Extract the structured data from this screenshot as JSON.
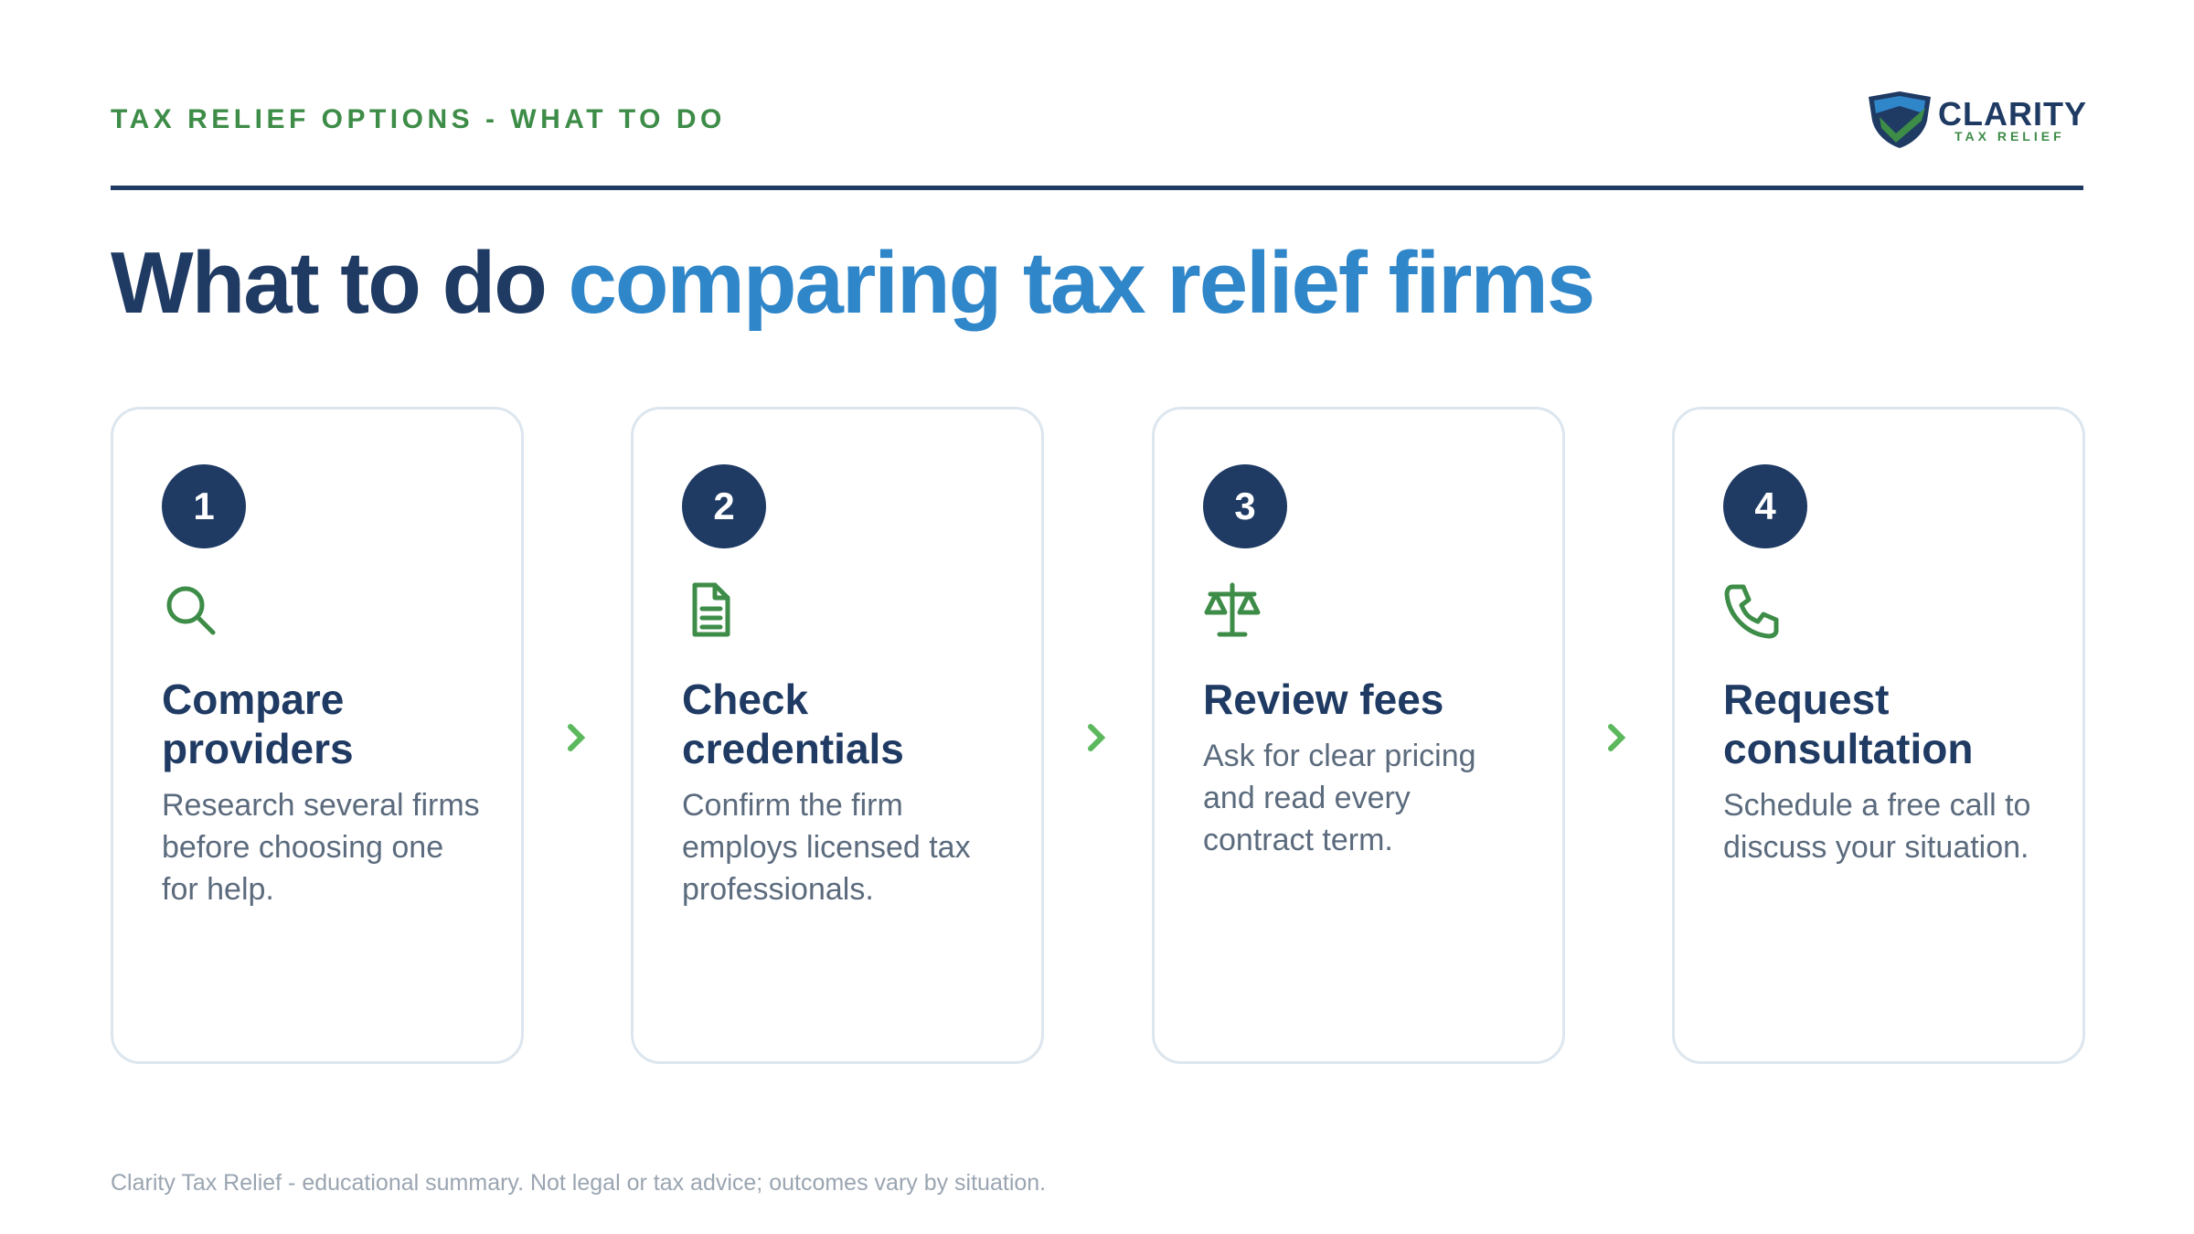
{
  "header": {
    "label": "TAX RELIEF OPTIONS - WHAT TO DO"
  },
  "logo": {
    "name": "CLARITY",
    "tagline": "TAX RELIEF"
  },
  "title": {
    "part1": "What to do",
    "part2": "comparing tax relief firms"
  },
  "steps": [
    {
      "number": "1",
      "title": "Compare providers",
      "description": "Research several firms before choosing one for help."
    },
    {
      "number": "2",
      "title": "Check credentials",
      "description": "Confirm the firm employs licensed tax professionals."
    },
    {
      "number": "3",
      "title": "Review fees",
      "description": "Ask for clear pricing and read every contract term."
    },
    {
      "number": "4",
      "title": "Request consultation",
      "description": "Schedule a free call to discuss your situation."
    }
  ],
  "footer": "Clarity Tax Relief - educational summary. Not legal or tax advice; outcomes vary by situation."
}
